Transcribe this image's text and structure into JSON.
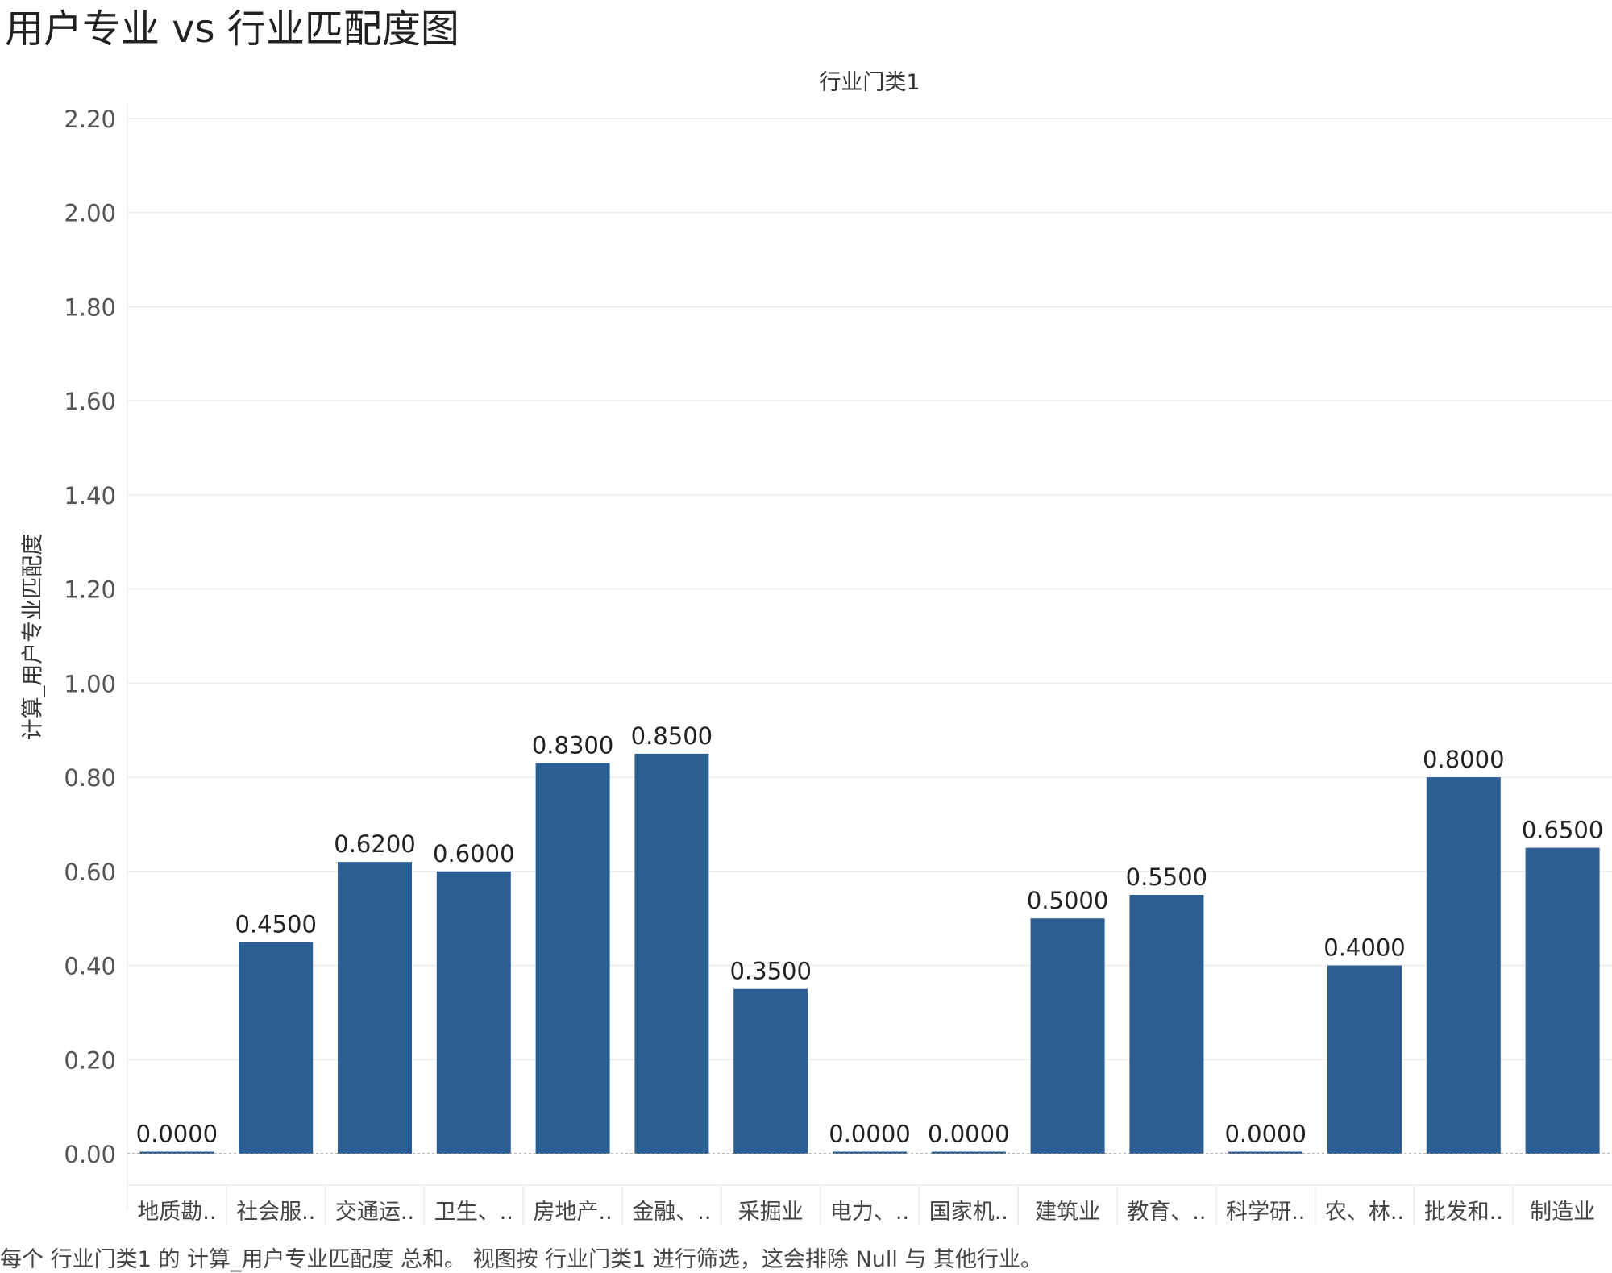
{
  "title": "用户专业 vs 行业匹配度图",
  "footnote": "每个 行业门类1 的 计算_用户专业匹配度 总和。 视图按 行业门类1 进行筛选，这会排除 Null 与 其他行业。",
  "chart_data": {
    "type": "bar",
    "title": "用户专业 vs 行业匹配度图",
    "xlabel": "行业门类1",
    "ylabel": "计算_用户专业匹配度",
    "categories": [
      "地质勘..",
      "社会服..",
      "交通运..",
      "卫生、..",
      "房地产..",
      "金融、..",
      "采掘业",
      "电力、..",
      "国家机..",
      "建筑业",
      "教育、..",
      "科学研..",
      "农、林..",
      "批发和..",
      "制造业"
    ],
    "values": [
      0.0,
      0.45,
      0.62,
      0.6,
      0.83,
      0.85,
      0.35,
      0.0,
      0.0,
      0.5,
      0.55,
      0.0,
      0.4,
      0.8,
      0.65
    ],
    "data_labels": [
      "0.0000",
      "0.4500",
      "0.6200",
      "0.6000",
      "0.8300",
      "0.8500",
      "0.3500",
      "0.0000",
      "0.0000",
      "0.5000",
      "0.5500",
      "0.0000",
      "0.4000",
      "0.8000",
      "0.6500"
    ],
    "yticks": [
      "0.00",
      "0.20",
      "0.40",
      "0.60",
      "0.80",
      "1.00",
      "1.20",
      "1.40",
      "1.60",
      "1.80",
      "2.00",
      "2.20"
    ],
    "ylim": [
      0,
      2.2
    ],
    "grid": true,
    "bar_color": "#2b5f94"
  }
}
